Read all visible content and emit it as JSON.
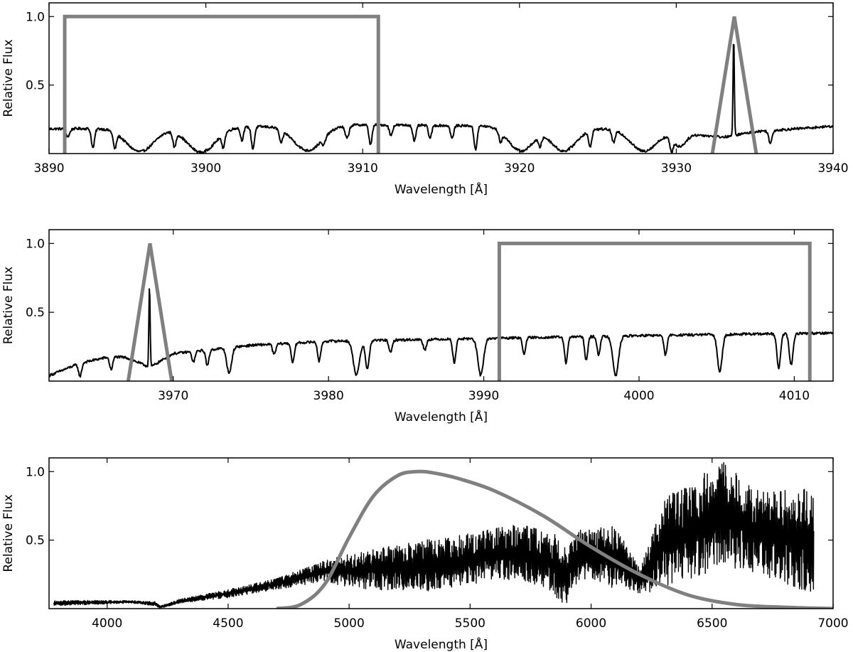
{
  "chart_data": [
    {
      "type": "line",
      "xlabel": "Wavelength [Å]",
      "ylabel": "Relative Flux",
      "xlim": [
        3890,
        3940
      ],
      "ylim": [
        0,
        1.1
      ],
      "xticks": [
        3890,
        3900,
        3910,
        3920,
        3930,
        3940
      ],
      "xtick_labels": [
        "3890",
        "3900",
        "3910",
        "3920",
        "3930",
        "3940"
      ],
      "yticks": [
        0.5,
        1.0
      ],
      "ytick_labels": [
        "0.5",
        "1.0"
      ],
      "series": [
        {
          "role": "filter",
          "color": "#808080",
          "x": [
            3891,
            3891,
            3911,
            3911
          ],
          "y": [
            0,
            1.0,
            1.0,
            0
          ]
        },
        {
          "role": "filter",
          "color": "#808080",
          "x": [
            3932.3,
            3933.7,
            3935.1
          ],
          "y": [
            0,
            1.0,
            0
          ]
        },
        {
          "role": "spectrum",
          "color": "#000000",
          "continuum": [
            [
              3890,
              0.18
            ],
            [
              3900,
              0.19
            ],
            [
              3910,
              0.21
            ],
            [
              3920,
              0.2
            ],
            [
              3928,
              0.17
            ],
            [
              3931,
              0.14
            ],
            [
              3933,
              0.12
            ],
            [
              3935,
              0.16
            ],
            [
              3940,
              0.2
            ]
          ],
          "absorption_lines": [
            [
              3891.2,
              0.06,
              0.12
            ],
            [
              3892.8,
              0.15,
              0.1
            ],
            [
              3894.2,
              0.15,
              0.1
            ],
            [
              3895.8,
              0.18,
              0.9
            ],
            [
              3898.0,
              0.14,
              0.1
            ],
            [
              3899.7,
              0.19,
              0.9
            ],
            [
              3901.1,
              0.14,
              0.1
            ],
            [
              3902.3,
              0.1,
              0.1
            ],
            [
              3903.0,
              0.17,
              0.1
            ],
            [
              3904.8,
              0.12,
              0.1
            ],
            [
              3906.5,
              0.19,
              0.9
            ],
            [
              3907.5,
              0.1,
              0.1
            ],
            [
              3909.0,
              0.1,
              0.12
            ],
            [
              3910.5,
              0.15,
              0.1
            ],
            [
              3911.8,
              0.08,
              0.1
            ],
            [
              3913.3,
              0.12,
              0.1
            ],
            [
              3914.3,
              0.1,
              0.1
            ],
            [
              3915.7,
              0.1,
              0.1
            ],
            [
              3917.2,
              0.18,
              0.1
            ],
            [
              3918.8,
              0.1,
              0.1
            ],
            [
              3920.1,
              0.19,
              0.8
            ],
            [
              3921.3,
              0.12,
              0.1
            ],
            [
              3922.8,
              0.18,
              0.8
            ],
            [
              3924.5,
              0.14,
              0.1
            ],
            [
              3926.0,
              0.1,
              0.1
            ],
            [
              3927.9,
              0.16,
              0.8
            ],
            [
              3929.7,
              0.15,
              0.1
            ],
            [
              3930.2,
              0.1,
              0.4
            ],
            [
              3936.0,
              0.1,
              0.1
            ]
          ],
          "emission_lines": [
            [
              3933.66,
              0.73,
              0.04
            ]
          ]
        }
      ]
    },
    {
      "type": "line",
      "xlabel": "Wavelength [Å]",
      "ylabel": "Relative Flux",
      "xlim": [
        3962,
        4012.5
      ],
      "ylim": [
        0,
        1.1
      ],
      "xticks": [
        3970,
        3980,
        3990,
        4000,
        4010
      ],
      "xtick_labels": [
        "3970",
        "3980",
        "3990",
        "4000",
        "4010"
      ],
      "yticks": [
        0.5,
        1.0
      ],
      "ytick_labels": [
        "0.5",
        "1.0"
      ],
      "series": [
        {
          "role": "filter",
          "color": "#808080",
          "x": [
            3991,
            3991,
            4011,
            4011
          ],
          "y": [
            0,
            1.0,
            1.0,
            0
          ]
        },
        {
          "role": "filter",
          "color": "#808080",
          "x": [
            3967.1,
            3968.5,
            3969.9
          ],
          "y": [
            0,
            1.0,
            0
          ]
        },
        {
          "role": "spectrum",
          "color": "#000000",
          "continuum": [
            [
              3962,
              0.04
            ],
            [
              3964,
              0.13
            ],
            [
              3966,
              0.18
            ],
            [
              3967,
              0.17
            ],
            [
              3968.5,
              0.1
            ],
            [
              3970,
              0.2
            ],
            [
              3975,
              0.26
            ],
            [
              3980,
              0.29
            ],
            [
              3990,
              0.31
            ],
            [
              4000,
              0.33
            ],
            [
              4012.5,
              0.35
            ]
          ],
          "absorption_lines": [
            [
              3964.0,
              0.1,
              0.1
            ],
            [
              3966.0,
              0.1,
              0.1
            ],
            [
              3971.3,
              0.08,
              0.1
            ],
            [
              3972.2,
              0.12,
              0.1
            ],
            [
              3973.6,
              0.2,
              0.15
            ],
            [
              3976.5,
              0.08,
              0.1
            ],
            [
              3977.7,
              0.15,
              0.1
            ],
            [
              3979.4,
              0.15,
              0.1
            ],
            [
              3981.8,
              0.26,
              0.2
            ],
            [
              3982.5,
              0.22,
              0.12
            ],
            [
              3984.0,
              0.1,
              0.1
            ],
            [
              3986.2,
              0.08,
              0.1
            ],
            [
              3988.1,
              0.18,
              0.1
            ],
            [
              3989.8,
              0.28,
              0.18
            ],
            [
              3992.6,
              0.12,
              0.1
            ],
            [
              3995.3,
              0.2,
              0.1
            ],
            [
              3996.6,
              0.18,
              0.1
            ],
            [
              3997.4,
              0.14,
              0.1
            ],
            [
              3998.5,
              0.3,
              0.18
            ],
            [
              4001.7,
              0.15,
              0.1
            ],
            [
              4005.2,
              0.28,
              0.15
            ],
            [
              4009.0,
              0.26,
              0.12
            ],
            [
              4009.8,
              0.24,
              0.12
            ]
          ],
          "emission_lines": [
            [
              3968.47,
              0.6,
              0.04
            ]
          ]
        }
      ]
    },
    {
      "type": "line",
      "xlabel": "Wavelength [Å]",
      "ylabel": "Relative Flux",
      "xlim": [
        3760,
        7000
      ],
      "ylim": [
        0,
        1.1
      ],
      "xticks": [
        4000,
        4500,
        5000,
        5500,
        6000,
        6500,
        7000
      ],
      "xtick_labels": [
        "4000",
        "4500",
        "5000",
        "5500",
        "6000",
        "6500",
        "7000"
      ],
      "yticks": [
        0.5,
        1.0
      ],
      "ytick_labels": [
        "0.5",
        "1.0"
      ],
      "series": [
        {
          "role": "filter",
          "color": "#808080",
          "x": [
            4700,
            4800,
            4900,
            5000,
            5100,
            5200,
            5280,
            5350,
            5450,
            5600,
            5800,
            6000,
            6200,
            6400,
            6600,
            6800,
            7000
          ],
          "y": [
            0.0,
            0.03,
            0.18,
            0.52,
            0.82,
            0.97,
            1.0,
            0.99,
            0.95,
            0.86,
            0.68,
            0.45,
            0.25,
            0.1,
            0.03,
            0.01,
            0.0
          ]
        },
        {
          "role": "spectrum",
          "color": "#000000",
          "envelope": [
            [
              3780,
              0.02,
              0.06
            ],
            [
              4100,
              0.04,
              0.06
            ],
            [
              4200,
              0.02,
              0.05
            ],
            [
              4220,
              0.0,
              0.02
            ],
            [
              4300,
              0.04,
              0.07
            ],
            [
              4500,
              0.08,
              0.14
            ],
            [
              4700,
              0.14,
              0.22
            ],
            [
              4900,
              0.2,
              0.35
            ],
            [
              5000,
              0.15,
              0.4
            ],
            [
              5300,
              0.12,
              0.5
            ],
            [
              5500,
              0.18,
              0.55
            ],
            [
              5700,
              0.22,
              0.62
            ],
            [
              5850,
              0.1,
              0.55
            ],
            [
              5890,
              0.0,
              0.45
            ],
            [
              5950,
              0.2,
              0.58
            ],
            [
              6100,
              0.15,
              0.6
            ],
            [
              6200,
              0.1,
              0.3
            ],
            [
              6300,
              0.15,
              0.8
            ],
            [
              6550,
              0.3,
              1.08
            ],
            [
              6700,
              0.25,
              0.85
            ],
            [
              6920,
              0.1,
              0.88
            ]
          ]
        }
      ]
    }
  ]
}
